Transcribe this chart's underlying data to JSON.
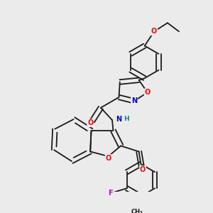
{
  "bg_color": "#ebebeb",
  "bond_color": "#1a1a1a",
  "atom_colors": {
    "O": "#ff0000",
    "N": "#0000cc",
    "F": "#cc00cc",
    "H": "#008888",
    "C": "#1a1a1a"
  },
  "figsize": [
    3.0,
    3.0
  ],
  "dpi": 100
}
